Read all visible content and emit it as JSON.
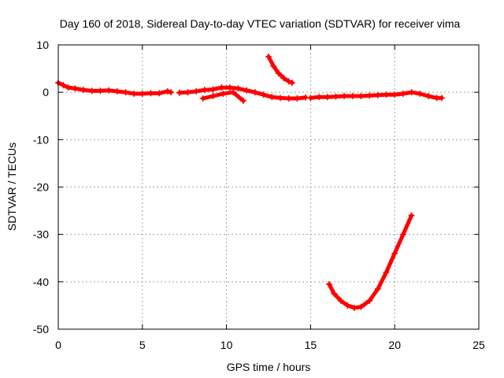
{
  "chart_data": {
    "type": "scatter",
    "title": "Day 160 of 2018, Sidereal Day-to-day VTEC variation (SDTVAR) for receiver vima",
    "xlabel": "GPS time / hours",
    "ylabel": "SDTVAR / TECUs",
    "xlim": [
      0,
      25
    ],
    "ylim": [
      -50,
      10
    ],
    "xticks": [
      0,
      5,
      10,
      15,
      20,
      25
    ],
    "yticks": [
      10,
      0,
      -10,
      -20,
      -30,
      -40,
      -50
    ],
    "grid": true,
    "marker": "plus",
    "series": [
      {
        "name": "sdtvar",
        "color": "#ff0000",
        "segments": [
          {
            "x": [
              0.0,
              0.3,
              0.6,
              1.0,
              1.5,
              2.0,
              2.5,
              3.0,
              3.5,
              4.0,
              4.5,
              5.0,
              5.5,
              6.0,
              6.5,
              6.7
            ],
            "y": [
              2.0,
              1.5,
              1.0,
              0.8,
              0.5,
              0.3,
              0.3,
              0.4,
              0.2,
              0.0,
              -0.3,
              -0.3,
              -0.2,
              -0.2,
              0.2,
              0.0
            ]
          },
          {
            "x": [
              7.2,
              7.7,
              8.2,
              8.7,
              9.2,
              9.7,
              10.2,
              10.7,
              11.2,
              11.7,
              12.2,
              12.7,
              13.2,
              13.7,
              14.2,
              14.7
            ],
            "y": [
              -0.1,
              0.0,
              0.2,
              0.5,
              0.6,
              1.0,
              1.0,
              0.8,
              0.4,
              0.0,
              -0.5,
              -1.0,
              -1.2,
              -1.3,
              -1.3,
              -1.1
            ]
          },
          {
            "x": [
              8.6,
              9.2,
              9.8,
              10.4,
              11.0
            ],
            "y": [
              -1.3,
              -0.8,
              -0.3,
              0.0,
              -1.8
            ]
          },
          {
            "x": [
              15.0,
              15.5,
              16.0,
              16.5,
              17.0,
              17.5,
              18.0,
              18.5,
              19.0,
              19.5,
              20.0,
              20.5,
              21.0,
              21.5,
              22.0,
              22.5,
              22.8
            ],
            "y": [
              -1.2,
              -1.0,
              -1.0,
              -0.9,
              -0.8,
              -0.8,
              -0.8,
              -0.7,
              -0.6,
              -0.5,
              -0.5,
              -0.3,
              0.0,
              -0.3,
              -0.8,
              -1.2,
              -1.2
            ]
          },
          {
            "x": [
              12.5,
              12.8,
              13.1,
              13.4,
              13.7,
              13.9
            ],
            "y": [
              7.5,
              5.5,
              4.0,
              3.0,
              2.3,
              2.0
            ]
          },
          {
            "x": [
              16.1,
              16.4,
              16.8,
              17.2,
              17.6,
              18.0,
              18.5,
              19.0,
              19.5,
              20.0,
              20.5,
              21.0
            ],
            "y": [
              -40.5,
              -42.5,
              -44.0,
              -45.0,
              -45.5,
              -45.3,
              -44.0,
              -41.5,
              -38.0,
              -34.0,
              -30.0,
              -26.0
            ]
          }
        ]
      }
    ]
  }
}
